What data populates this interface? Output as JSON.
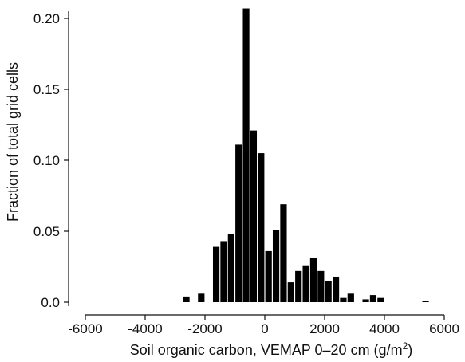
{
  "chart_data": {
    "type": "bar",
    "xlabel": "Soil organic carbon, VEMAP 0–20 cm (g/m",
    "xlabel_sup": "2",
    "xlabel_close": ")",
    "ylabel": "Fraction of total grid cells",
    "xlim": [
      -6000,
      6000
    ],
    "ylim": [
      0,
      0.21
    ],
    "x_ticks": [
      -6000,
      -4000,
      -2000,
      0,
      2000,
      4000,
      6000
    ],
    "x_tick_labels": [
      "-6000",
      "-4000",
      "-2000",
      "0",
      "2000",
      "4000",
      "6000"
    ],
    "y_ticks": [
      0.0,
      0.05,
      0.1,
      0.15,
      0.2
    ],
    "y_tick_labels": [
      "0.0",
      "0.05",
      "0.10",
      "0.15",
      "0.20"
    ],
    "bin_width": 250,
    "grid": false,
    "legend": "none",
    "bar_color": "#000000",
    "bins": [
      {
        "x": -2625,
        "value": 0.004
      },
      {
        "x": -2125,
        "value": 0.006
      },
      {
        "x": -1625,
        "value": 0.039
      },
      {
        "x": -1375,
        "value": 0.043
      },
      {
        "x": -1125,
        "value": 0.048
      },
      {
        "x": -875,
        "value": 0.111
      },
      {
        "x": -625,
        "value": 0.207
      },
      {
        "x": -375,
        "value": 0.121
      },
      {
        "x": -125,
        "value": 0.105
      },
      {
        "x": 125,
        "value": 0.036
      },
      {
        "x": 375,
        "value": 0.051
      },
      {
        "x": 625,
        "value": 0.069
      },
      {
        "x": 875,
        "value": 0.014
      },
      {
        "x": 1125,
        "value": 0.022
      },
      {
        "x": 1375,
        "value": 0.026
      },
      {
        "x": 1625,
        "value": 0.031
      },
      {
        "x": 1875,
        "value": 0.022
      },
      {
        "x": 2125,
        "value": 0.015
      },
      {
        "x": 2375,
        "value": 0.018
      },
      {
        "x": 2625,
        "value": 0.003
      },
      {
        "x": 2875,
        "value": 0.006
      },
      {
        "x": 3375,
        "value": 0.002
      },
      {
        "x": 3625,
        "value": 0.005
      },
      {
        "x": 3875,
        "value": 0.003
      },
      {
        "x": 5375,
        "value": 0.001
      }
    ]
  }
}
